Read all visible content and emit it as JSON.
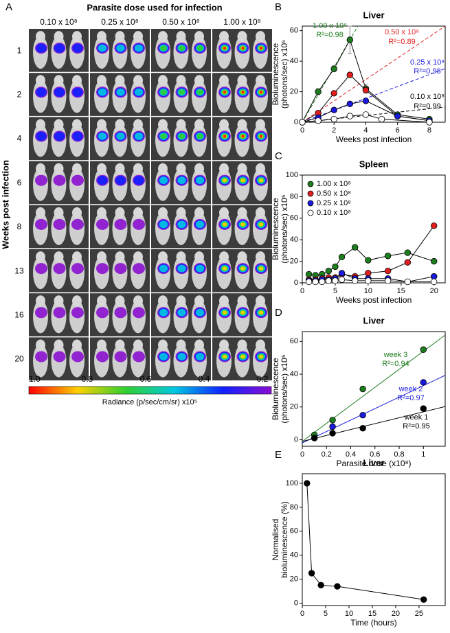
{
  "panel_a": {
    "label": "A",
    "title": "Parasite dose used for infection",
    "columns": [
      "0.10 x 10⁸",
      "0.25 x 10⁸",
      "0.50 x 10⁸",
      "1.00 x 10⁸"
    ],
    "rows": [
      "1",
      "2",
      "4",
      "6",
      "8",
      "13",
      "16",
      "20"
    ],
    "row_axis_label": "Weeks post infection",
    "colorbar_ticks": [
      "1.0",
      "0.8",
      "0.6",
      "0.4",
      "0.2"
    ],
    "colorbar_label": "Radiance (p/sec/cm/sr) x10⁵"
  },
  "chart_data": [
    {
      "type": "line",
      "panel": "B",
      "title": "Liver",
      "x_label": "Weeks post infection",
      "y_label": [
        "Bioluminescence",
        "(photons/sec) x10⁵"
      ],
      "xlim": [
        0,
        9
      ],
      "xticks": [
        0,
        2,
        4,
        6,
        8
      ],
      "ylim": [
        0,
        63
      ],
      "yticks": [
        0,
        20,
        40,
        60
      ],
      "connect": true,
      "series": [
        {
          "name": "1.00 x 10⁸",
          "r2": "R²=0.98",
          "color": "#1e7d1e",
          "x": [
            0,
            1,
            2,
            3,
            4,
            6,
            8
          ],
          "values": [
            0,
            20,
            35,
            54,
            22,
            5,
            2
          ],
          "errors": [
            0,
            2,
            2,
            9,
            3,
            1,
            1
          ],
          "trend": {
            "slope": 18,
            "intercept": 0
          }
        },
        {
          "name": "0.50 x 10⁸",
          "r2": "R²=0.89",
          "color": "#e02020",
          "x": [
            0,
            1,
            2,
            3,
            4,
            6,
            8
          ],
          "values": [
            0,
            6,
            19,
            31,
            21,
            4,
            1
          ],
          "trend": {
            "slope": 7,
            "intercept": 0
          }
        },
        {
          "name": "0.25 x 10⁸",
          "r2": "R²=0.98",
          "color": "#1a1adc",
          "x": [
            0,
            1,
            2,
            3,
            4,
            6,
            8
          ],
          "values": [
            0,
            3,
            8,
            12,
            14,
            4,
            1
          ],
          "trend": {
            "slope": 3.9,
            "intercept": 0
          }
        },
        {
          "name": "0.10 x 10⁸",
          "r2": "R²=0.99",
          "color": "#ffffff",
          "trend_color": "#000000",
          "x": [
            0,
            1,
            2,
            3,
            4,
            5,
            8
          ],
          "values": [
            0,
            1,
            2,
            4,
            5,
            2,
            0
          ],
          "trend": {
            "slope": 1.1,
            "intercept": 0
          }
        }
      ]
    },
    {
      "type": "line",
      "panel": "C",
      "title": "Spleen",
      "x_label": "Weeks post infection",
      "y_label": [
        "Bioluminescence",
        "(photons/sec) x10⁵"
      ],
      "xlim": [
        0,
        21.7
      ],
      "xticks": [
        0,
        5,
        10,
        15,
        20
      ],
      "ylim": [
        0,
        100
      ],
      "yticks": [
        0,
        20,
        40,
        60,
        80,
        100
      ],
      "connect": true,
      "legend": "upper left",
      "x": [
        1,
        2,
        3,
        4,
        5,
        6,
        8,
        10,
        13,
        16,
        20
      ],
      "series": [
        {
          "name": "1.00 x 10⁸",
          "color": "#1e7d1e",
          "values": [
            8,
            7,
            8,
            11,
            15,
            24,
            33,
            21,
            25,
            28,
            20
          ]
        },
        {
          "name": "0.50 x 10⁸",
          "color": "#e02020",
          "values": [
            3,
            3,
            4,
            5,
            5,
            8,
            6,
            9,
            11,
            19,
            53
          ]
        },
        {
          "name": "0.25 x 10⁸",
          "color": "#1a1adc",
          "values": [
            2,
            2,
            3,
            3,
            4,
            9,
            4,
            4,
            4,
            1,
            6
          ]
        },
        {
          "name": "0.10 x 10⁸",
          "color": "#ffffff",
          "values": [
            1,
            1,
            1,
            2,
            2,
            3,
            2,
            2,
            2,
            1,
            1
          ]
        }
      ]
    },
    {
      "type": "scatter",
      "panel": "D",
      "title": "Liver",
      "x_label": "Parasite dose (x10⁸)",
      "y_label": [
        "Bioluminescence",
        "(photons/sec) x10⁵"
      ],
      "xlim": [
        0,
        1.18
      ],
      "xticks": [
        0,
        0.2,
        0.4,
        0.6,
        0.8,
        1
      ],
      "ylim": [
        -4,
        66
      ],
      "yticks": [
        0,
        20,
        40,
        60
      ],
      "x": [
        0.1,
        0.25,
        0.5,
        1
      ],
      "series": [
        {
          "name": "week 3",
          "r2": "R²=0.94",
          "color": "#1e7d1e",
          "values": [
            3,
            12,
            31,
            55
          ],
          "trend": {
            "slope": 55,
            "intercept": -1
          }
        },
        {
          "name": "week 2",
          "r2": "R²=0.97",
          "color": "#1a1adc",
          "values": [
            1,
            8,
            15,
            35
          ],
          "trend": {
            "slope": 35,
            "intercept": -2
          }
        },
        {
          "name": "week 1",
          "r2": "R²=0.95",
          "color": "#000000",
          "values": [
            1,
            4,
            7,
            19
          ],
          "trend": {
            "slope": 18,
            "intercept": -1
          }
        }
      ]
    },
    {
      "type": "line",
      "panel": "E",
      "title": "Liver",
      "x_label": "Time (hours)",
      "y_label": [
        "Normalised",
        "bioluminescence (%)"
      ],
      "xlim": [
        0,
        30.6
      ],
      "xticks": [
        0,
        5,
        10,
        15,
        20,
        25
      ],
      "ylim": [
        -2,
        108
      ],
      "yticks": [
        0,
        20,
        40,
        60,
        80,
        100
      ],
      "connect": true,
      "x": [
        1,
        2,
        4,
        7.5,
        26
      ],
      "series": [
        {
          "color": "#000000",
          "values": [
            100,
            25,
            15,
            14,
            3
          ]
        }
      ]
    }
  ]
}
